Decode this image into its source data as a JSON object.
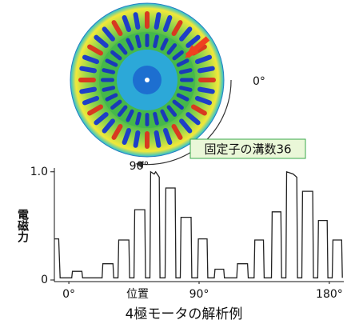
{
  "chart_data": {
    "type": "line",
    "caption": "4極モータの解析例",
    "annotations": [
      "0°",
      "90°",
      "固定子の溝数36"
    ],
    "xlabel": "位置",
    "ylabel": "電磁力",
    "xlim": [
      -10,
      190
    ],
    "ylim": [
      0,
      1.05
    ],
    "xticks": [
      {
        "value": 0,
        "label": "0°"
      },
      {
        "value": 90,
        "label": "90°"
      },
      {
        "value": 180,
        "label": "180°"
      }
    ],
    "yticks": [
      0,
      {
        "value": 1,
        "label": "1.0"
      }
    ],
    "series": [
      {
        "color": "#222222",
        "x": [
          -10,
          -7,
          -6,
          2,
          2.5,
          9,
          9.5,
          23,
          23.5,
          30.5,
          31,
          34,
          34.5,
          41.5,
          42,
          45,
          45.5,
          52.5,
          53,
          56,
          56.5,
          59,
          60,
          62.5,
          63,
          66.5,
          67,
          73.5,
          74,
          77,
          77.5,
          84.5,
          85,
          89,
          89.5,
          95.5,
          96,
          100.5,
          101,
          107,
          107.5,
          116,
          116.5,
          123.5,
          124,
          128,
          128.5,
          134.5,
          135,
          140,
          140.5,
          146.5,
          147,
          150,
          150.5,
          155,
          157.5,
          158,
          161,
          161.5,
          168.5,
          169,
          172,
          172.5,
          178.5,
          179,
          182,
          182.5,
          188.5,
          189
        ],
        "values": [
          0.38,
          0.38,
          0.02,
          0.02,
          0.08,
          0.08,
          0.02,
          0.02,
          0.15,
          0.15,
          0.02,
          0.02,
          0.37,
          0.37,
          0.02,
          0.02,
          0.65,
          0.65,
          0.02,
          0.02,
          1.0,
          0.98,
          1.0,
          0.95,
          0.02,
          0.02,
          0.85,
          0.85,
          0.02,
          0.02,
          0.58,
          0.58,
          0.02,
          0.02,
          0.38,
          0.38,
          0.02,
          0.02,
          0.1,
          0.1,
          0.02,
          0.02,
          0.15,
          0.15,
          0.02,
          0.02,
          0.37,
          0.37,
          0.02,
          0.02,
          0.63,
          0.63,
          0.02,
          0.02,
          1.0,
          0.98,
          0.95,
          0.02,
          0.02,
          0.82,
          0.82,
          0.02,
          0.02,
          0.55,
          0.55,
          0.02,
          0.02,
          0.37,
          0.37,
          0.02
        ]
      }
    ]
  }
}
